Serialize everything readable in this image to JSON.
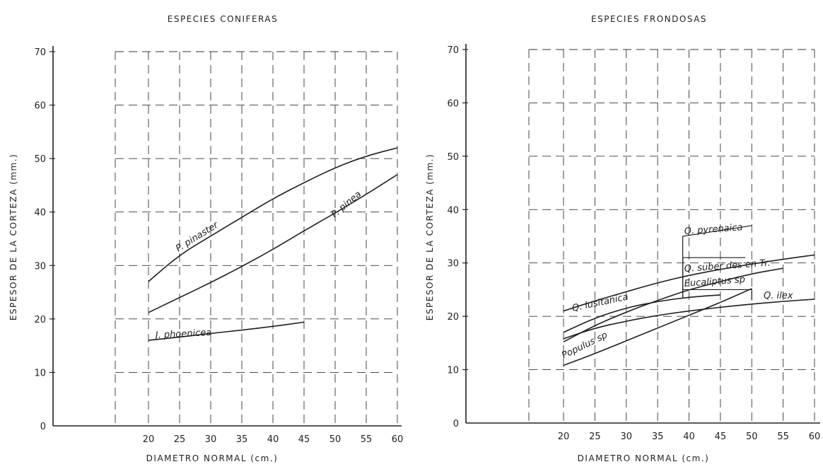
{
  "chart_data": [
    {
      "type": "line",
      "title": "ESPECIES CONIFERAS",
      "xlabel": "DIAMETRO  NORMAL  (cm.)",
      "ylabel": "ESPESOR DE LA CORTEZA  (mm.)",
      "xlim": [
        20,
        60
      ],
      "ylim": [
        0,
        70
      ],
      "grid": true,
      "x_ticks": [
        20,
        25,
        30,
        35,
        40,
        45,
        50,
        55,
        60
      ],
      "y_ticks": [
        0,
        10,
        20,
        30,
        40,
        50,
        60,
        70
      ],
      "series": [
        {
          "name": "P. pinaster",
          "x": [
            20,
            25,
            30,
            35,
            40,
            45,
            50,
            55,
            60
          ],
          "y": [
            27,
            32,
            35.5,
            39,
            42.5,
            45.5,
            48.3,
            50.5,
            52
          ]
        },
        {
          "name": "P. pinea",
          "x": [
            20,
            25,
            30,
            35,
            40,
            45,
            50,
            55,
            60
          ],
          "y": [
            21.2,
            24,
            26.8,
            29.8,
            33,
            36.5,
            39.8,
            43.3,
            47
          ]
        },
        {
          "name": "J. phoenicea",
          "x": [
            20,
            25,
            30,
            35,
            40,
            45
          ],
          "y": [
            16,
            16.6,
            17.3,
            17.9,
            18.6,
            19.4
          ]
        }
      ]
    },
    {
      "type": "line",
      "title": "ESPECIES FRONDOSAS",
      "xlabel": "DIAMETRO  NORMAL  (cm.)",
      "ylabel": "ESPESOR DE LA CORTEZA  (mm.)",
      "xlim": [
        20,
        60
      ],
      "ylim": [
        0,
        70
      ],
      "grid": true,
      "x_ticks": [
        20,
        25,
        30,
        35,
        40,
        45,
        50,
        55,
        60
      ],
      "y_ticks": [
        0,
        10,
        20,
        30,
        40,
        50,
        60,
        70
      ],
      "series": [
        {
          "name": "Q. pyrenaica",
          "x": [
            39,
            50
          ],
          "y": [
            37,
            37
          ]
        },
        {
          "name": "Q. suber des en Tr.",
          "x": [
            20,
            25,
            30,
            35,
            40,
            45,
            50,
            55,
            60
          ],
          "y": [
            21,
            22.9,
            24.6,
            26.3,
            27.7,
            28.8,
            29.8,
            30.7,
            31.5
          ]
        },
        {
          "name": "Eucaliptus sp",
          "x": [
            20,
            25,
            30,
            35,
            40,
            45,
            50,
            55
          ],
          "y": [
            15.2,
            18.3,
            20.8,
            23,
            25,
            26.5,
            28,
            29
          ]
        },
        {
          "name": "Q. lusitanica",
          "x": [
            20,
            25,
            30,
            35,
            40,
            45
          ],
          "y": [
            17,
            19.7,
            21.6,
            22.8,
            23.6,
            24
          ]
        },
        {
          "name": "Q. ilex",
          "x": [
            20,
            25,
            30,
            35,
            40,
            45,
            50,
            55,
            60
          ],
          "y": [
            15.8,
            17.8,
            19.1,
            20.2,
            21,
            21.7,
            22.3,
            22.8,
            23.2
          ]
        },
        {
          "name": "Populus sp",
          "x": [
            20,
            25,
            30,
            35,
            40,
            45,
            50
          ],
          "y": [
            10.8,
            13,
            15.4,
            17.8,
            20.2,
            22.6,
            25.2
          ]
        }
      ]
    }
  ]
}
